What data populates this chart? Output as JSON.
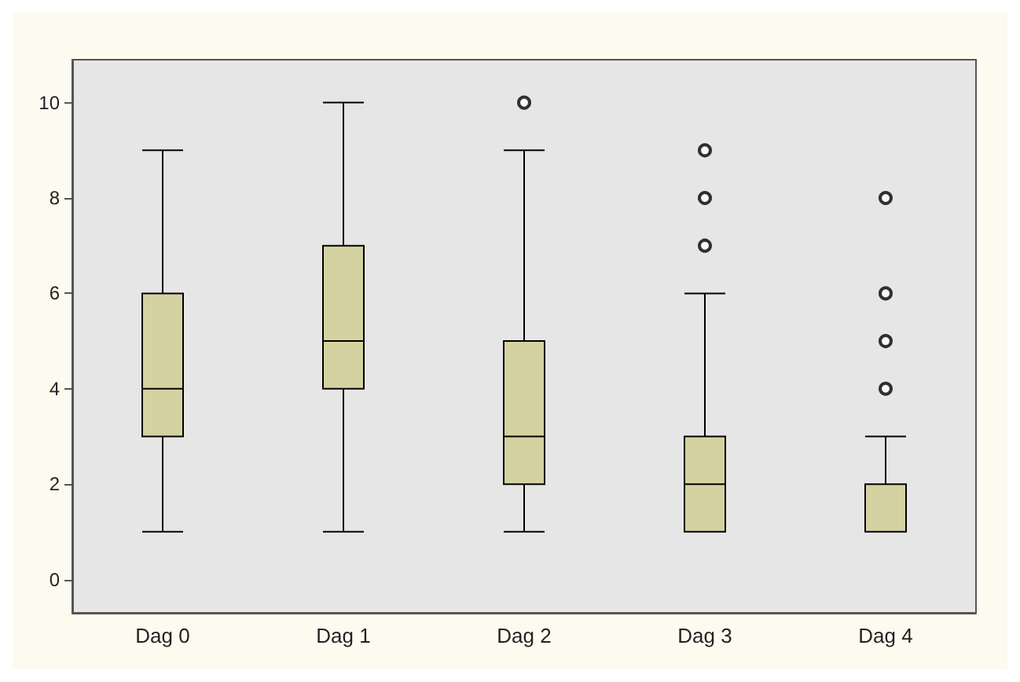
{
  "chart_data": {
    "type": "box",
    "categories": [
      "Dag 0",
      "Dag 1",
      "Dag 2",
      "Dag 3",
      "Dag 4"
    ],
    "boxes": [
      {
        "low": 1,
        "q1": 3,
        "median": 4,
        "q3": 6,
        "high": 9
      },
      {
        "low": 1,
        "q1": 4,
        "median": 5,
        "q3": 7,
        "high": 10
      },
      {
        "low": 1,
        "q1": 2,
        "median": 3,
        "q3": 5,
        "high": 9,
        "outliers": [
          10
        ]
      },
      {
        "low": 1,
        "q1": 1,
        "median": 2,
        "q3": 3,
        "high": 6,
        "outliers": [
          7,
          8,
          9
        ]
      },
      {
        "low": 1,
        "q1": 1,
        "median": 1,
        "q3": 2,
        "high": 3,
        "outliers": [
          4,
          5,
          6,
          8
        ]
      }
    ],
    "color": "#d5d2a2",
    "ylim": [
      -0.7,
      10.9
    ],
    "yticks": [
      0,
      2,
      4,
      6,
      8,
      10
    ],
    "grid": false
  }
}
